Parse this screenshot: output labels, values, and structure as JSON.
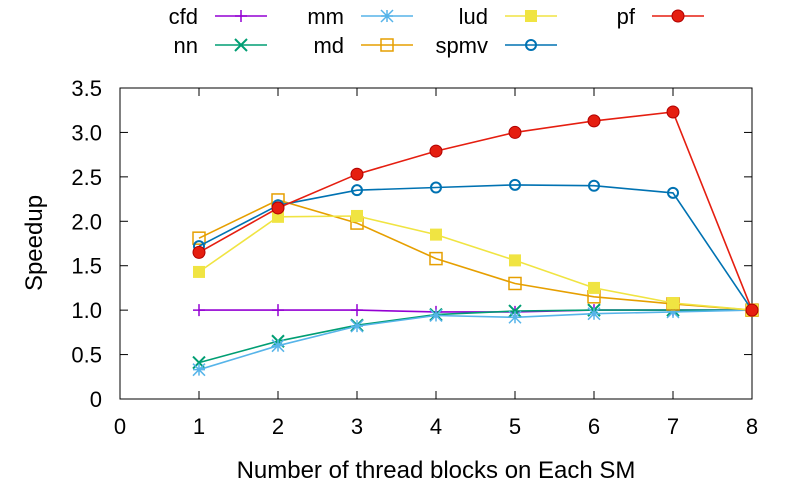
{
  "chart_data": {
    "type": "line",
    "xlabel": "Number of thread blocks on Each SM",
    "ylabel": "Speedup",
    "xlim": [
      0,
      8
    ],
    "ylim": [
      0,
      3.5
    ],
    "x_ticks": [
      "0",
      "1",
      "2",
      "3",
      "4",
      "5",
      "6",
      "7",
      "8"
    ],
    "y_ticks": [
      "0",
      "0.5",
      "1.0",
      "1.5",
      "2.0",
      "2.5",
      "3.0",
      "3.5"
    ],
    "grid": false,
    "legend_position": "top",
    "x": [
      1,
      2,
      3,
      4,
      5,
      6,
      7,
      8
    ],
    "series": [
      {
        "name": "cfd",
        "color": "#9400d3",
        "marker": "plus",
        "values": [
          1.0,
          1.0,
          1.0,
          0.98,
          0.98,
          1.0,
          1.0,
          1.0
        ]
      },
      {
        "name": "nn",
        "color": "#009e73",
        "marker": "cross",
        "values": [
          0.41,
          0.65,
          0.83,
          0.95,
          0.99,
          1.0,
          1.0,
          1.0
        ]
      },
      {
        "name": "mm",
        "color": "#56b4e9",
        "marker": "star",
        "values": [
          0.33,
          0.6,
          0.82,
          0.94,
          0.92,
          0.96,
          0.98,
          1.0
        ]
      },
      {
        "name": "md",
        "color": "#e69f00",
        "marker": "open-square",
        "values": [
          1.81,
          2.24,
          1.98,
          1.58,
          1.3,
          1.15,
          1.07,
          1.0
        ]
      },
      {
        "name": "lud",
        "color": "#f0e442",
        "marker": "filled-square",
        "values": [
          1.43,
          2.05,
          2.06,
          1.85,
          1.56,
          1.25,
          1.08,
          1.0
        ]
      },
      {
        "name": "spmv",
        "color": "#0072b2",
        "marker": "open-circle",
        "values": [
          1.72,
          2.18,
          2.35,
          2.38,
          2.41,
          2.4,
          2.32,
          1.0
        ]
      },
      {
        "name": "pf",
        "color": "#e51e10",
        "marker": "filled-circle",
        "values": [
          1.65,
          2.15,
          2.53,
          2.79,
          3.0,
          3.13,
          3.23,
          1.0
        ]
      }
    ]
  }
}
